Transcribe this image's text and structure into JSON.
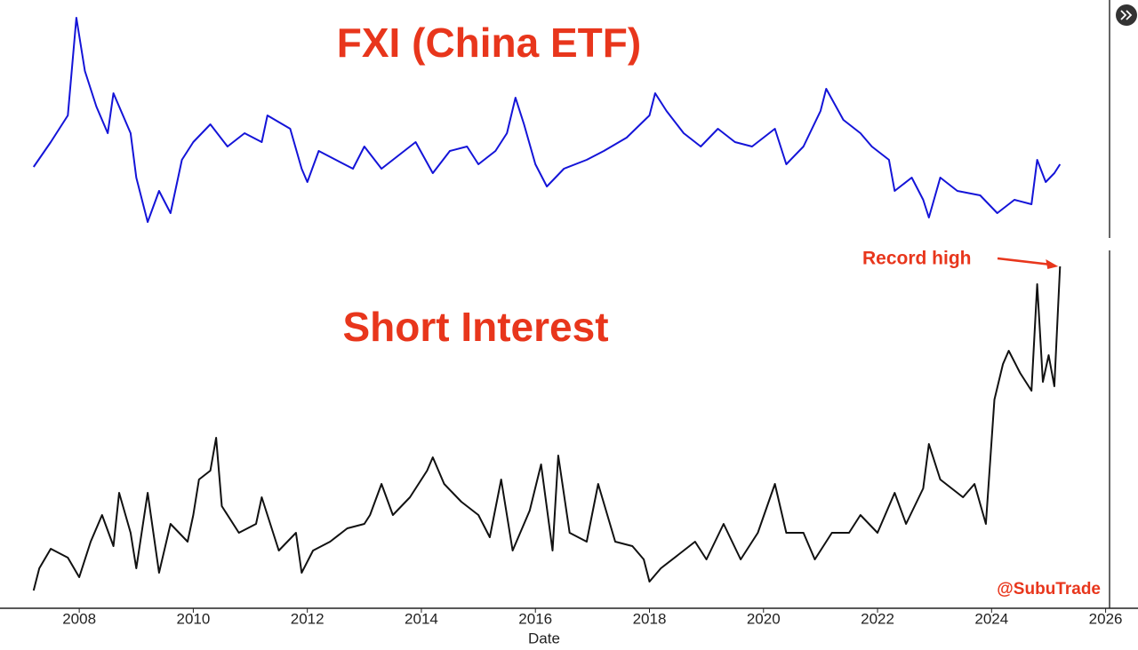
{
  "chart_data": [
    {
      "type": "line",
      "title": "FXI (China ETF)",
      "color": "#1414d8",
      "xlim": [
        2007,
        2026.1
      ],
      "ylim": [
        0,
        255
      ],
      "x": [
        2007.2,
        2007.5,
        2007.8,
        2007.95,
        2008.1,
        2008.3,
        2008.5,
        2008.6,
        2008.9,
        2009.0,
        2009.2,
        2009.4,
        2009.6,
        2009.8,
        2010.0,
        2010.3,
        2010.6,
        2010.9,
        2011.2,
        2011.3,
        2011.7,
        2011.9,
        2012.0,
        2012.2,
        2012.5,
        2012.8,
        2013.0,
        2013.3,
        2013.6,
        2013.9,
        2014.2,
        2014.5,
        2014.8,
        2015.0,
        2015.3,
        2015.5,
        2015.65,
        2015.8,
        2016.0,
        2016.2,
        2016.5,
        2016.9,
        2017.2,
        2017.6,
        2018.0,
        2018.1,
        2018.3,
        2018.6,
        2018.9,
        2019.2,
        2019.5,
        2019.8,
        2020.2,
        2020.4,
        2020.7,
        2021.0,
        2021.1,
        2021.4,
        2021.7,
        2021.9,
        2022.2,
        2022.3,
        2022.6,
        2022.8,
        2022.9,
        2023.1,
        2023.4,
        2023.8,
        2024.1,
        2024.4,
        2024.7,
        2024.8,
        2024.95,
        2025.1,
        2025.2
      ],
      "values": [
        77,
        105,
        135,
        245,
        185,
        145,
        115,
        160,
        115,
        65,
        15,
        50,
        25,
        85,
        105,
        125,
        100,
        115,
        105,
        135,
        120,
        75,
        60,
        95,
        85,
        75,
        100,
        75,
        90,
        105,
        70,
        95,
        100,
        80,
        95,
        115,
        155,
        125,
        80,
        55,
        75,
        85,
        95,
        110,
        135,
        160,
        140,
        115,
        100,
        120,
        105,
        100,
        120,
        80,
        100,
        140,
        165,
        130,
        115,
        100,
        85,
        50,
        65,
        40,
        20,
        65,
        50,
        45,
        25,
        40,
        35,
        85,
        60,
        70,
        80
      ]
    },
    {
      "type": "line",
      "title": "Short Interest",
      "color": "#111111",
      "xlim": [
        2007,
        2026.1
      ],
      "ylim": [
        0,
        400
      ],
      "xticks": [
        2008,
        2010,
        2012,
        2014,
        2016,
        2018,
        2020,
        2022,
        2024,
        2026
      ],
      "xlabel": "Date",
      "annotation": "Record high",
      "annotation_color": "#e8361c",
      "watermark": "@SubuTrade",
      "x": [
        2007.2,
        2007.3,
        2007.5,
        2007.8,
        2008.0,
        2008.2,
        2008.4,
        2008.6,
        2008.7,
        2008.9,
        2009.0,
        2009.2,
        2009.4,
        2009.6,
        2009.9,
        2010.0,
        2010.1,
        2010.3,
        2010.4,
        2010.5,
        2010.8,
        2011.1,
        2011.2,
        2011.5,
        2011.8,
        2011.9,
        2012.1,
        2012.4,
        2012.7,
        2013.0,
        2013.1,
        2013.3,
        2013.5,
        2013.8,
        2014.1,
        2014.2,
        2014.4,
        2014.7,
        2015.0,
        2015.2,
        2015.4,
        2015.6,
        2015.9,
        2016.1,
        2016.3,
        2016.4,
        2016.6,
        2016.9,
        2017.1,
        2017.4,
        2017.7,
        2017.9,
        2018.0,
        2018.2,
        2018.5,
        2018.8,
        2019.0,
        2019.3,
        2019.6,
        2019.9,
        2020.2,
        2020.4,
        2020.7,
        2020.9,
        2021.2,
        2021.5,
        2021.7,
        2022.0,
        2022.3,
        2022.5,
        2022.8,
        2022.9,
        2023.1,
        2023.3,
        2023.5,
        2023.7,
        2023.9,
        2024.05,
        2024.2,
        2024.3,
        2024.5,
        2024.7,
        2024.8,
        2024.9,
        2025.0,
        2025.1,
        2025.2
      ],
      "values": [
        20,
        45,
        67,
        57,
        35,
        75,
        105,
        70,
        130,
        85,
        45,
        130,
        40,
        95,
        75,
        105,
        145,
        155,
        192,
        115,
        85,
        95,
        125,
        65,
        85,
        40,
        65,
        75,
        90,
        95,
        105,
        140,
        105,
        125,
        155,
        170,
        140,
        120,
        105,
        80,
        145,
        65,
        110,
        162,
        65,
        172,
        85,
        75,
        140,
        75,
        70,
        55,
        30,
        45,
        60,
        75,
        55,
        95,
        55,
        85,
        140,
        85,
        85,
        55,
        85,
        85,
        105,
        85,
        130,
        95,
        135,
        185,
        145,
        135,
        125,
        140,
        95,
        235,
        275,
        290,
        265,
        245,
        365,
        255,
        285,
        250,
        385
      ]
    }
  ]
}
